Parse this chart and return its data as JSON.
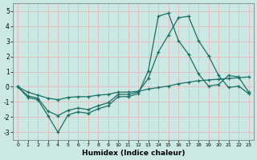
{
  "xlabel": "Humidex (Indice chaleur)",
  "bg_color": "#cce8e4",
  "grid_color": "#e8b8b8",
  "line_color": "#1a6e65",
  "xlim": [
    -0.5,
    23.5
  ],
  "ylim": [
    -3.5,
    5.5
  ],
  "yticks": [
    -3,
    -2,
    -1,
    0,
    1,
    2,
    3,
    4,
    5
  ],
  "xticks": [
    0,
    1,
    2,
    3,
    4,
    5,
    6,
    7,
    8,
    9,
    10,
    11,
    12,
    13,
    14,
    15,
    16,
    17,
    18,
    19,
    20,
    21,
    22,
    23
  ],
  "line1_x": [
    0,
    1,
    2,
    3,
    4,
    5,
    6,
    7,
    8,
    9,
    10,
    11,
    12,
    13,
    14,
    15,
    16,
    17,
    18,
    19,
    20,
    21,
    22,
    23
  ],
  "line1_y": [
    0.0,
    -0.7,
    -0.85,
    -1.9,
    -3.0,
    -1.85,
    -1.65,
    -1.75,
    -1.45,
    -1.25,
    -0.65,
    -0.65,
    -0.45,
    1.05,
    4.65,
    4.85,
    3.05,
    2.15,
    0.85,
    0.05,
    0.15,
    0.75,
    0.65,
    -0.35
  ],
  "line2_x": [
    0,
    1,
    2,
    3,
    4,
    5,
    6,
    7,
    8,
    9,
    10,
    11,
    12,
    13,
    14,
    15,
    16,
    17,
    18,
    19,
    20,
    21,
    22,
    23
  ],
  "line2_y": [
    0.0,
    -0.6,
    -0.75,
    -1.6,
    -1.9,
    -1.55,
    -1.4,
    -1.5,
    -1.25,
    -1.05,
    -0.5,
    -0.5,
    -0.35,
    0.55,
    2.3,
    3.4,
    4.55,
    4.65,
    3.05,
    2.05,
    0.75,
    -0.05,
    0.05,
    -0.45
  ],
  "line3_x": [
    0,
    1,
    2,
    3,
    4,
    5,
    6,
    7,
    8,
    9,
    10,
    11,
    12,
    13,
    14,
    15,
    16,
    17,
    18,
    19,
    20,
    21,
    22,
    23
  ],
  "line3_y": [
    0.0,
    -0.35,
    -0.55,
    -0.75,
    -0.85,
    -0.7,
    -0.65,
    -0.65,
    -0.55,
    -0.5,
    -0.35,
    -0.35,
    -0.3,
    -0.15,
    -0.05,
    0.05,
    0.2,
    0.3,
    0.4,
    0.45,
    0.5,
    0.55,
    0.6,
    0.65
  ]
}
